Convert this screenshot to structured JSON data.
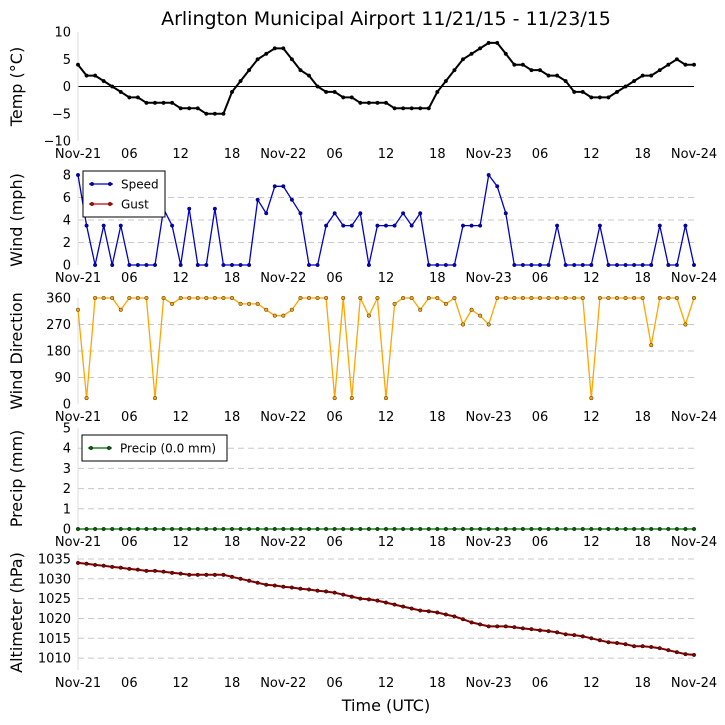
{
  "chart_data": {
    "type": "line",
    "title": "Arlington Municipal Airport 11/21/15 - 11/23/15",
    "xlabel": "Time (UTC)",
    "x_range_hours": [
      0,
      72
    ],
    "x_ticks": [
      {
        "h": 0,
        "label": "Nov-21"
      },
      {
        "h": 6,
        "label": "06"
      },
      {
        "h": 12,
        "label": "12"
      },
      {
        "h": 18,
        "label": "18"
      },
      {
        "h": 24,
        "label": "Nov-22"
      },
      {
        "h": 30,
        "label": "06"
      },
      {
        "h": 36,
        "label": "12"
      },
      {
        "h": 42,
        "label": "18"
      },
      {
        "h": 48,
        "label": "Nov-23"
      },
      {
        "h": 54,
        "label": "06"
      },
      {
        "h": 60,
        "label": "12"
      },
      {
        "h": 66,
        "label": "18"
      },
      {
        "h": 72,
        "label": "Nov-24"
      }
    ],
    "panels": [
      {
        "id": "temp",
        "ylabel": "Temp (°C)",
        "ylim": [
          -10,
          10
        ],
        "yticks": [
          -10,
          -5,
          0,
          5,
          10
        ],
        "ytick_labels": [
          "−10",
          "−5",
          "0",
          "5",
          "10"
        ],
        "zero_line": true,
        "grid": false,
        "series": [
          {
            "name": "Temperature",
            "color": "#000000",
            "marker_color": "#000000",
            "x": [
              0,
              1,
              2,
              3,
              4,
              5,
              6,
              7,
              8,
              9,
              10,
              11,
              12,
              13,
              14,
              15,
              16,
              17,
              18,
              19,
              20,
              21,
              22,
              23,
              24,
              25,
              26,
              27,
              28,
              29,
              30,
              31,
              32,
              33,
              34,
              35,
              36,
              37,
              38,
              39,
              40,
              41,
              42,
              43,
              44,
              45,
              46,
              47,
              48,
              49,
              50,
              51,
              52,
              53,
              54,
              55,
              56,
              57,
              58,
              59,
              60,
              61,
              62,
              63,
              64,
              65,
              66,
              67,
              68,
              69,
              70,
              71,
              72
            ],
            "values": [
              4,
              2,
              2,
              1,
              0,
              -1,
              -2,
              -2,
              -3,
              -3,
              -3,
              -3,
              -4,
              -4,
              -4,
              -5,
              -5,
              -5,
              -1,
              1,
              3,
              5,
              6,
              7,
              7,
              5,
              3,
              2,
              0,
              -1,
              -1,
              -2,
              -2,
              -3,
              -3,
              -3,
              -3,
              -4,
              -4,
              -4,
              -4,
              -4,
              -1,
              1,
              3,
              5,
              6,
              7,
              8,
              8,
              6,
              4,
              4,
              3,
              3,
              2,
              2,
              1,
              -1,
              -1,
              -2,
              -2,
              -2,
              -1,
              0,
              1,
              2,
              2,
              3,
              4,
              5,
              4,
              4
            ]
          }
        ]
      },
      {
        "id": "wind",
        "ylabel": "Wind (mph)",
        "ylim": [
          0,
          8
        ],
        "yticks": [
          0,
          2,
          4,
          6,
          8
        ],
        "ytick_labels": [
          "0",
          "2",
          "4",
          "6",
          "8"
        ],
        "grid": true,
        "legend": "top-left",
        "series": [
          {
            "name": "Speed",
            "color": "#0000cc",
            "marker_color": "#0000cc",
            "x": [
              0,
              1,
              2,
              3,
              4,
              5,
              6,
              7,
              8,
              9,
              10,
              11,
              12,
              13,
              14,
              15,
              16,
              17,
              18,
              19,
              20,
              21,
              22,
              23,
              24,
              25,
              26,
              27,
              28,
              29,
              30,
              31,
              32,
              33,
              34,
              35,
              36,
              37,
              38,
              39,
              40,
              41,
              42,
              43,
              44,
              45,
              46,
              47,
              48,
              49,
              50,
              51,
              52,
              53,
              54,
              55,
              56,
              57,
              58,
              59,
              60,
              61,
              62,
              63,
              64,
              65,
              66,
              67,
              68,
              69,
              70,
              71,
              72
            ],
            "values": [
              8,
              3.5,
              0,
              3.5,
              0,
              3.5,
              0,
              0,
              0,
              0,
              5,
              3.5,
              0,
              5,
              0,
              0,
              5,
              0,
              0,
              0,
              0,
              5.8,
              4.6,
              7,
              7,
              5.8,
              4.6,
              0,
              0,
              3.5,
              4.6,
              3.5,
              3.5,
              4.6,
              0,
              3.5,
              3.5,
              3.5,
              4.6,
              3.5,
              4.6,
              0,
              0,
              0,
              0,
              3.5,
              3.5,
              3.5,
              8,
              7,
              4.6,
              0,
              0,
              0,
              0,
              0,
              3.5,
              0,
              0,
              0,
              0,
              3.5,
              0,
              0,
              0,
              0,
              0,
              0,
              3.5,
              0,
              0,
              3.5,
              0
            ]
          },
          {
            "name": "Gust",
            "color": "#cc0000",
            "marker_color": "#cc0000",
            "x": [],
            "values": []
          }
        ]
      },
      {
        "id": "dir",
        "ylabel": "Wind Direction",
        "ylim": [
          0,
          360
        ],
        "yticks": [
          0,
          90,
          180,
          270,
          360
        ],
        "ytick_labels": [
          "0",
          "90",
          "180",
          "270",
          "360"
        ],
        "grid": true,
        "series": [
          {
            "name": "Direction",
            "color": "#ffa500",
            "marker_color": "#ffa500",
            "x": [
              0,
              1,
              2,
              3,
              4,
              5,
              6,
              7,
              8,
              9,
              10,
              11,
              12,
              13,
              14,
              15,
              16,
              17,
              18,
              19,
              20,
              21,
              22,
              23,
              24,
              25,
              26,
              27,
              28,
              29,
              30,
              31,
              32,
              33,
              34,
              35,
              36,
              37,
              38,
              39,
              40,
              41,
              42,
              43,
              44,
              45,
              46,
              47,
              48,
              49,
              50,
              51,
              52,
              53,
              54,
              55,
              56,
              57,
              58,
              59,
              60,
              61,
              62,
              63,
              64,
              65,
              66,
              67,
              68,
              69,
              70,
              71,
              72
            ],
            "values": [
              320,
              20,
              360,
              360,
              360,
              320,
              360,
              360,
              360,
              20,
              360,
              340,
              360,
              360,
              360,
              360,
              360,
              360,
              360,
              340,
              340,
              340,
              320,
              300,
              300,
              320,
              360,
              360,
              360,
              360,
              20,
              360,
              20,
              360,
              300,
              360,
              20,
              340,
              360,
              360,
              320,
              360,
              360,
              340,
              360,
              270,
              320,
              300,
              270,
              360,
              360,
              360,
              360,
              360,
              360,
              360,
              360,
              360,
              360,
              360,
              20,
              360,
              360,
              360,
              360,
              360,
              360,
              200,
              360,
              360,
              360,
              270,
              360
            ]
          }
        ]
      },
      {
        "id": "precip",
        "ylabel": "Precip (mm)",
        "ylim": [
          0,
          5
        ],
        "yticks": [
          0,
          1,
          2,
          3,
          4,
          5
        ],
        "ytick_labels": [
          "0",
          "1",
          "2",
          "3",
          "4",
          "5"
        ],
        "grid": true,
        "legend": "top-left",
        "series": [
          {
            "name": "Precip (0.0 mm)",
            "color": "#006400",
            "marker_color": "#006400",
            "x": [
              0,
              1,
              2,
              3,
              4,
              5,
              6,
              7,
              8,
              9,
              10,
              11,
              12,
              13,
              14,
              15,
              16,
              17,
              18,
              19,
              20,
              21,
              22,
              23,
              24,
              25,
              26,
              27,
              28,
              29,
              30,
              31,
              32,
              33,
              34,
              35,
              36,
              37,
              38,
              39,
              40,
              41,
              42,
              43,
              44,
              45,
              46,
              47,
              48,
              49,
              50,
              51,
              52,
              53,
              54,
              55,
              56,
              57,
              58,
              59,
              60,
              61,
              62,
              63,
              64,
              65,
              66,
              67,
              68,
              69,
              70,
              71,
              72
            ],
            "values": [
              0,
              0,
              0,
              0,
              0,
              0,
              0,
              0,
              0,
              0,
              0,
              0,
              0,
              0,
              0,
              0,
              0,
              0,
              0,
              0,
              0,
              0,
              0,
              0,
              0,
              0,
              0,
              0,
              0,
              0,
              0,
              0,
              0,
              0,
              0,
              0,
              0,
              0,
              0,
              0,
              0,
              0,
              0,
              0,
              0,
              0,
              0,
              0,
              0,
              0,
              0,
              0,
              0,
              0,
              0,
              0,
              0,
              0,
              0,
              0,
              0,
              0,
              0,
              0,
              0,
              0,
              0,
              0,
              0,
              0,
              0,
              0,
              0
            ]
          }
        ]
      },
      {
        "id": "alt",
        "ylabel": "Altimeter (hPa)",
        "ylim": [
          1007,
          1036
        ],
        "yticks": [
          1010,
          1015,
          1020,
          1025,
          1030,
          1035
        ],
        "ytick_labels": [
          "1010",
          "1015",
          "1020",
          "1025",
          "1030",
          "1035"
        ],
        "grid": true,
        "series": [
          {
            "name": "Altimeter",
            "color": "#800000",
            "marker_color": "#8b0000",
            "x": [
              0,
              1,
              2,
              3,
              4,
              5,
              6,
              7,
              8,
              9,
              10,
              11,
              12,
              13,
              14,
              15,
              16,
              17,
              18,
              19,
              20,
              21,
              22,
              23,
              24,
              25,
              26,
              27,
              28,
              29,
              30,
              31,
              32,
              33,
              34,
              35,
              36,
              37,
              38,
              39,
              40,
              41,
              42,
              43,
              44,
              45,
              46,
              47,
              48,
              49,
              50,
              51,
              52,
              53,
              54,
              55,
              56,
              57,
              58,
              59,
              60,
              61,
              62,
              63,
              64,
              65,
              66,
              67,
              68,
              69,
              70,
              71,
              72
            ],
            "values": [
              1034,
              1033.8,
              1033.5,
              1033.3,
              1033,
              1032.8,
              1032.5,
              1032.3,
              1032,
              1032,
              1031.8,
              1031.5,
              1031.3,
              1031,
              1031,
              1031,
              1031,
              1031,
              1030.5,
              1030,
              1029.5,
              1029,
              1028.5,
              1028.3,
              1028,
              1027.8,
              1027.5,
              1027.3,
              1027,
              1026.8,
              1026.5,
              1026,
              1025.5,
              1025,
              1024.8,
              1024.5,
              1024,
              1023.5,
              1023,
              1022.5,
              1022,
              1021.8,
              1021.5,
              1021,
              1020.5,
              1019.8,
              1019,
              1018.5,
              1018,
              1018,
              1018,
              1017.8,
              1017.5,
              1017.3,
              1017,
              1016.8,
              1016.5,
              1016,
              1015.8,
              1015.5,
              1015,
              1014.5,
              1014,
              1013.8,
              1013.5,
              1013,
              1013,
              1012.8,
              1012.5,
              1012,
              1011.5,
              1011,
              1010.8
            ]
          }
        ]
      }
    ]
  }
}
